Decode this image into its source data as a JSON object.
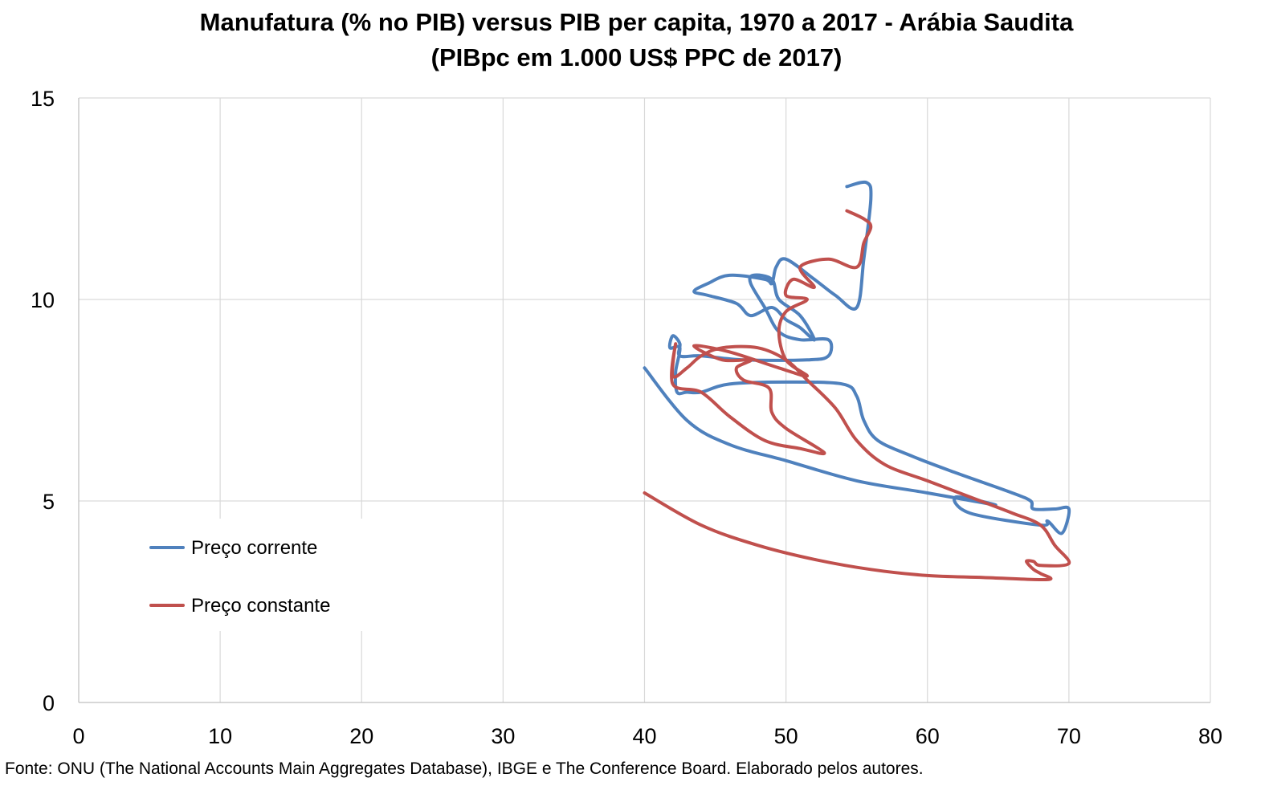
{
  "chart_data": {
    "type": "line",
    "title": "Manufatura (% no PIB) versus PIB per capita, 1970 a 2017 - Arábia Saudita",
    "subtitle": "(PIBpc em 1.000 US$ PPC de 2017)",
    "xlabel": "",
    "ylabel": "",
    "xlim": [
      0,
      80
    ],
    "ylim": [
      0,
      15
    ],
    "x_ticks": [
      0,
      10,
      20,
      30,
      40,
      50,
      60,
      70,
      80
    ],
    "y_ticks": [
      0,
      5,
      10,
      15
    ],
    "grid": true,
    "legend_position": "left",
    "series": [
      {
        "name": "Preço corrente",
        "color": "#4F81BD",
        "points": [
          [
            40.0,
            8.3
          ],
          [
            43.0,
            7.0
          ],
          [
            46.0,
            6.4
          ],
          [
            50.0,
            6.0
          ],
          [
            55.0,
            5.5
          ],
          [
            60.0,
            5.2
          ],
          [
            64.8,
            4.9
          ],
          [
            62.0,
            5.1
          ],
          [
            63.0,
            4.7
          ],
          [
            68.0,
            4.4
          ],
          [
            68.5,
            4.5
          ],
          [
            69.5,
            4.2
          ],
          [
            70.0,
            4.8
          ],
          [
            69.0,
            4.8
          ],
          [
            67.5,
            4.8
          ],
          [
            67.3,
            5.0
          ],
          [
            66.0,
            5.2
          ],
          [
            62.0,
            5.7
          ],
          [
            59.0,
            6.1
          ],
          [
            56.5,
            6.5
          ],
          [
            55.5,
            7.0
          ],
          [
            55.0,
            7.6
          ],
          [
            54.0,
            7.9
          ],
          [
            50.0,
            7.95
          ],
          [
            46.0,
            7.9
          ],
          [
            44.0,
            7.7
          ],
          [
            43.0,
            7.7
          ],
          [
            42.3,
            7.7
          ],
          [
            42.2,
            8.2
          ],
          [
            42.5,
            8.8
          ],
          [
            41.8,
            8.8
          ],
          [
            42.0,
            9.1
          ],
          [
            42.5,
            8.9
          ],
          [
            42.5,
            8.6
          ],
          [
            44.0,
            8.6
          ],
          [
            47.0,
            8.5
          ],
          [
            51.5,
            8.5
          ],
          [
            53.0,
            8.6
          ],
          [
            53.0,
            9.0
          ],
          [
            51.0,
            9.0
          ],
          [
            49.5,
            9.2
          ],
          [
            48.5,
            9.8
          ],
          [
            47.5,
            10.4
          ],
          [
            47.7,
            10.6
          ],
          [
            49.0,
            10.5
          ],
          [
            49.5,
            10.0
          ],
          [
            51.0,
            9.6
          ],
          [
            52.0,
            9.0
          ],
          [
            51.0,
            9.3
          ],
          [
            50.0,
            9.5
          ],
          [
            49.0,
            9.8
          ],
          [
            47.5,
            9.6
          ],
          [
            46.5,
            9.9
          ],
          [
            44.5,
            10.1
          ],
          [
            43.5,
            10.2
          ],
          [
            44.5,
            10.4
          ],
          [
            46.0,
            10.6
          ],
          [
            48.5,
            10.5
          ],
          [
            49.0,
            10.4
          ],
          [
            49.3,
            10.8
          ],
          [
            50.0,
            11.0
          ],
          [
            52.0,
            10.5
          ],
          [
            53.5,
            10.1
          ],
          [
            55.0,
            9.8
          ],
          [
            55.5,
            11.0
          ],
          [
            56.0,
            12.5
          ],
          [
            55.7,
            12.9
          ],
          [
            54.3,
            12.8
          ]
        ]
      },
      {
        "name": "Preço constante",
        "color": "#C0504D",
        "points": [
          [
            40.0,
            5.2
          ],
          [
            44.0,
            4.4
          ],
          [
            48.0,
            3.9
          ],
          [
            52.0,
            3.55
          ],
          [
            56.0,
            3.3
          ],
          [
            60.0,
            3.15
          ],
          [
            64.0,
            3.1
          ],
          [
            68.5,
            3.05
          ],
          [
            68.0,
            3.2
          ],
          [
            67.5,
            3.3
          ],
          [
            67.0,
            3.5
          ],
          [
            67.5,
            3.5
          ],
          [
            68.0,
            3.4
          ],
          [
            70.0,
            3.45
          ],
          [
            69.0,
            3.9
          ],
          [
            68.0,
            4.4
          ],
          [
            66.0,
            4.7
          ],
          [
            63.0,
            5.1
          ],
          [
            60.0,
            5.5
          ],
          [
            57.0,
            5.9
          ],
          [
            55.0,
            6.5
          ],
          [
            53.5,
            7.3
          ],
          [
            51.5,
            8.0
          ],
          [
            50.0,
            8.5
          ],
          [
            48.0,
            8.8
          ],
          [
            45.5,
            8.8
          ],
          [
            44.0,
            8.6
          ],
          [
            43.0,
            8.3
          ],
          [
            42.0,
            8.1
          ],
          [
            42.2,
            8.9
          ],
          [
            42.0,
            7.9
          ],
          [
            44.0,
            7.7
          ],
          [
            46.0,
            7.1
          ],
          [
            48.5,
            6.5
          ],
          [
            51.0,
            6.3
          ],
          [
            52.7,
            6.2
          ],
          [
            50.0,
            6.8
          ],
          [
            49.0,
            7.2
          ],
          [
            48.8,
            7.8
          ],
          [
            47.0,
            8.0
          ],
          [
            46.5,
            8.3
          ],
          [
            47.5,
            8.5
          ],
          [
            45.5,
            8.5
          ],
          [
            43.5,
            8.85
          ],
          [
            46.0,
            8.7
          ],
          [
            49.5,
            8.3
          ],
          [
            51.5,
            8.1
          ],
          [
            50.0,
            8.5
          ],
          [
            49.5,
            9.2
          ],
          [
            50.0,
            9.7
          ],
          [
            51.5,
            10.0
          ],
          [
            50.0,
            10.1
          ],
          [
            50.5,
            10.5
          ],
          [
            52.0,
            10.3
          ],
          [
            51.0,
            10.8
          ],
          [
            53.0,
            11.0
          ],
          [
            55.0,
            10.8
          ],
          [
            55.5,
            11.4
          ],
          [
            56.0,
            11.8
          ],
          [
            55.5,
            12.0
          ],
          [
            54.3,
            12.2
          ]
        ]
      }
    ]
  },
  "source_note": "Fonte: ONU (The National Accounts Main Aggregates Database), IBGE e The Conference Board. Elaborado pelos autores."
}
